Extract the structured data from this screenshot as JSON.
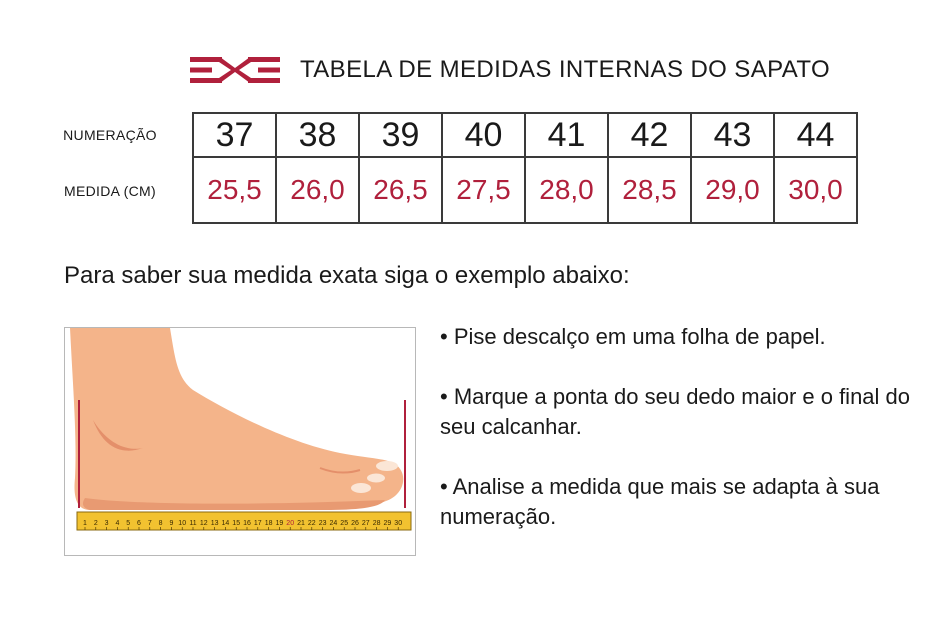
{
  "header": {
    "title": "TABELA DE MEDIDAS INTERNAS DO SAPATO",
    "logo_icon": "brand-chevron-logo-icon"
  },
  "table": {
    "row_labels": {
      "numeracao": "NUMERAÇÃO",
      "medida": "MEDIDA (CM)"
    },
    "sizes": [
      "37",
      "38",
      "39",
      "40",
      "41",
      "42",
      "43",
      "44"
    ],
    "measures": [
      "25,5",
      "26,0",
      "26,5",
      "27,5",
      "28,0",
      "28,5",
      "29,0",
      "30,0"
    ]
  },
  "instruction": "Para saber sua medida exata siga o exemplo abaixo:",
  "illustration": {
    "icon": "foot-on-ruler-icon",
    "ruler_marks": [
      "1",
      "2",
      "3",
      "4",
      "5",
      "6",
      "7",
      "8",
      "9",
      "10",
      "11",
      "12",
      "13",
      "14",
      "15",
      "16",
      "17",
      "18",
      "19",
      "20",
      "21",
      "22",
      "23",
      "24",
      "25",
      "26",
      "27",
      "28",
      "29",
      "30"
    ]
  },
  "tips": [
    "• Pise descalço em uma folha de papel.",
    "• Marque a ponta do seu dedo maior e o final do seu calcanhar.",
    "• Analise a medida que mais se adapta à sua numeração."
  ],
  "colors": {
    "accent": "#b0203c",
    "text": "#1a1a1a",
    "skin": "#f4b48a",
    "ruler": "#f2c230"
  }
}
